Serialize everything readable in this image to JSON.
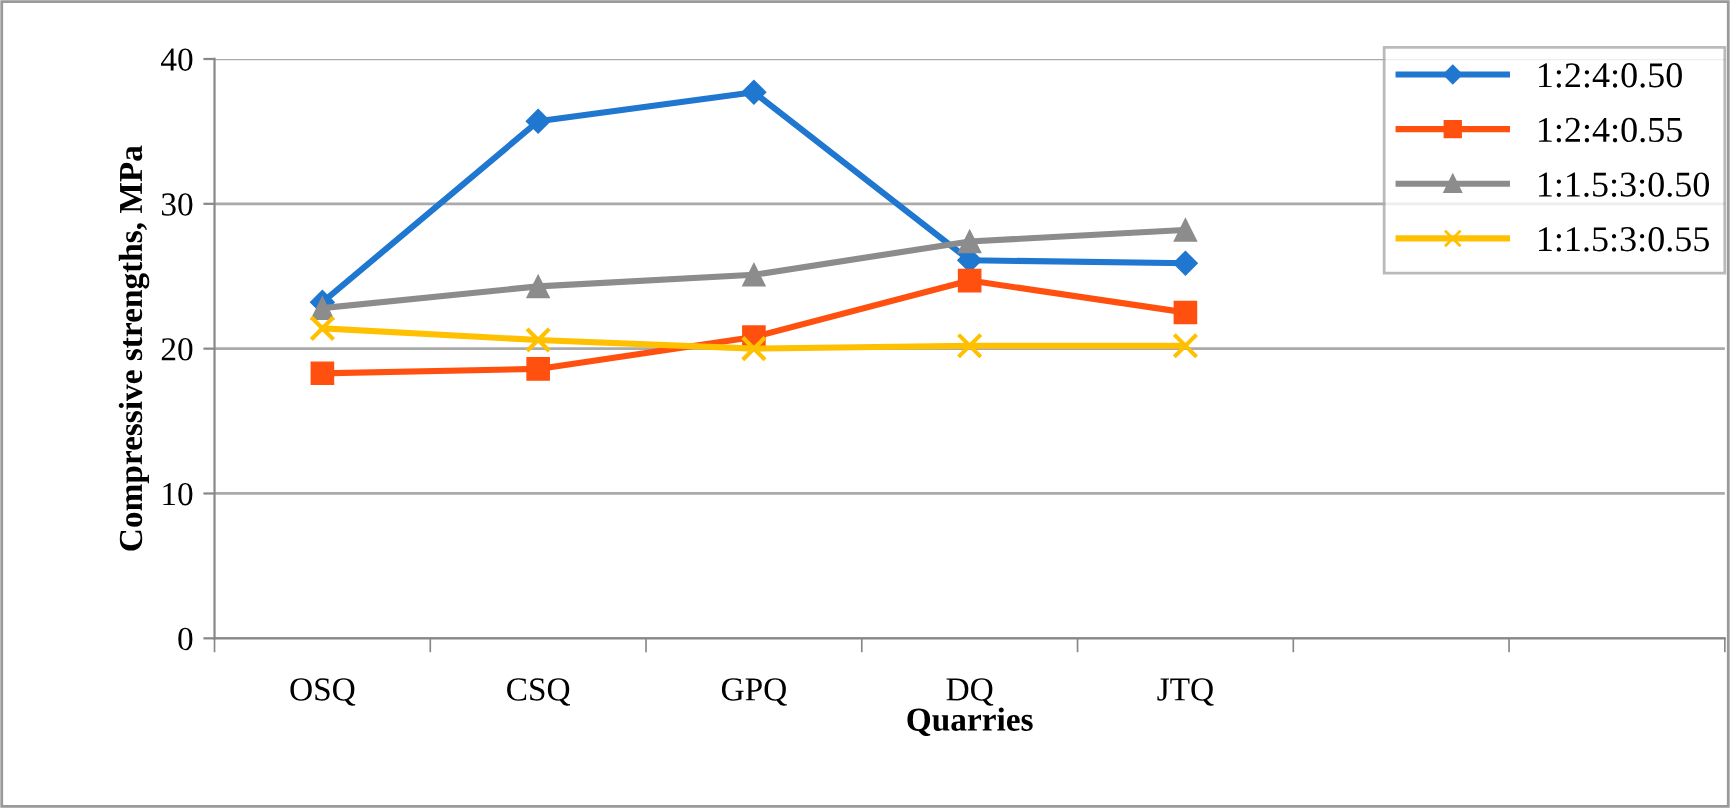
{
  "chart_data": {
    "type": "line",
    "xlabel": "Quarries",
    "ylabel": "Compressive strengths, MPa",
    "categories": [
      "OSQ",
      "CSQ",
      "GPQ",
      "DQ",
      "JTQ",
      null,
      null
    ],
    "series": [
      {
        "name": "1:2:4:0.50",
        "color": "#1f77d0",
        "marker": "diamond",
        "values": [
          23.2,
          35.7,
          37.7,
          26.1,
          25.9,
          null,
          null
        ]
      },
      {
        "name": "1:2:4:0.55",
        "color": "#ff5010",
        "marker": "square",
        "values": [
          18.3,
          18.6,
          20.8,
          24.7,
          22.5,
          null,
          null
        ]
      },
      {
        "name": "1:1.5:3:0.50",
        "color": "#8c8c8c",
        "marker": "triangle",
        "values": [
          22.8,
          24.3,
          25.1,
          27.4,
          28.2,
          null,
          null
        ]
      },
      {
        "name": "1:1.5:3:0.55",
        "color": "#ffc000",
        "marker": "cross",
        "values": [
          21.4,
          20.6,
          20.0,
          20.2,
          20.2,
          null,
          null
        ]
      }
    ],
    "ylim": [
      0,
      40
    ],
    "yticks": [
      0,
      10,
      20,
      30,
      40
    ],
    "grid": "y",
    "legend": "top right",
    "line_style": "solid"
  }
}
